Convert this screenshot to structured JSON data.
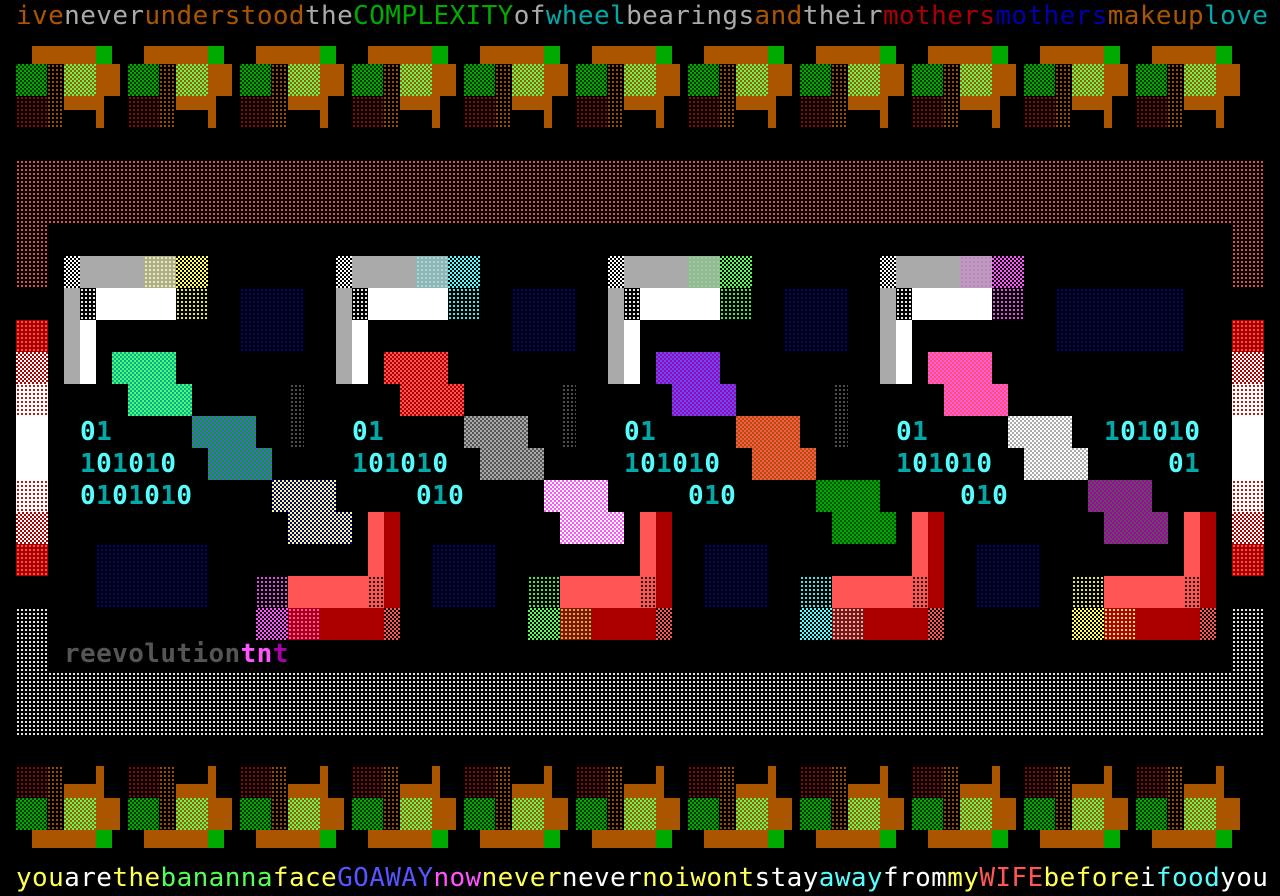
{
  "top_line": [
    {
      "text": "ive",
      "color": "#aa5500"
    },
    {
      "text": "never",
      "color": "#aaaaaa"
    },
    {
      "text": "understood",
      "color": "#aa5500"
    },
    {
      "text": "the",
      "color": "#aaaaaa"
    },
    {
      "text": "COMPLEXITY",
      "color": "#00aa00"
    },
    {
      "text": "of",
      "color": "#aaaaaa"
    },
    {
      "text": "wheel",
      "color": "#00aaaa"
    },
    {
      "text": "bearings",
      "color": "#aaaaaa"
    },
    {
      "text": "and",
      "color": "#aa5500"
    },
    {
      "text": "their",
      "color": "#aaaaaa"
    },
    {
      "text": "mothers",
      "color": "#aa0000"
    },
    {
      "text": "mothers",
      "color": "#0000aa"
    },
    {
      "text": "makeup",
      "color": "#aa5500"
    },
    {
      "text": "love",
      "color": "#00aaaa"
    }
  ],
  "bottom_line": [
    {
      "text": "you",
      "color": "#ffff55"
    },
    {
      "text": "are",
      "color": "#ffffff"
    },
    {
      "text": "the",
      "color": "#ffff55"
    },
    {
      "text": "bananna",
      "color": "#55ff55"
    },
    {
      "text": "face",
      "color": "#ffff55"
    },
    {
      "text": "GOAWAY",
      "color": "#5555ff"
    },
    {
      "text": "now",
      "color": "#ff55ff"
    },
    {
      "text": "never",
      "color": "#ffff55"
    },
    {
      "text": "never",
      "color": "#ffffff"
    },
    {
      "text": "noiwont",
      "color": "#ffff55"
    },
    {
      "text": "stay",
      "color": "#ffffff"
    },
    {
      "text": "away",
      "color": "#55ffff"
    },
    {
      "text": "from",
      "color": "#ffffff"
    },
    {
      "text": "my",
      "color": "#ffff55"
    },
    {
      "text": "WIFE",
      "color": "#ff5555"
    },
    {
      "text": "before",
      "color": "#ffff55"
    },
    {
      "text": "i",
      "color": "#ffffff"
    },
    {
      "text": "food",
      "color": "#55ffff"
    },
    {
      "text": "you",
      "color": "#ffffff"
    }
  ],
  "panels": [
    {
      "binary": [
        "01",
        "101010",
        "0101010"
      ],
      "accent_top": "#ffff55",
      "accent_bottom": "#ff55ff"
    },
    {
      "binary": [
        "01",
        "101010",
        "010"
      ],
      "accent_top": "#55ffff",
      "accent_bottom": "#55ff55"
    },
    {
      "binary": [
        "01",
        "101010",
        "010"
      ],
      "accent_top": "#55ff55",
      "accent_bottom": "#55ffff"
    },
    {
      "binary": [
        "01",
        "101010",
        "010"
      ],
      "accent_top": "#ff55ff",
      "accent_bottom": "#ffff55"
    }
  ],
  "right_binary": [
    "101010",
    "01"
  ],
  "signature": [
    {
      "text": "reevolution",
      "color": "#555555"
    },
    {
      "text": "tn",
      "color": "#ff55ff"
    },
    {
      "text": "t",
      "color": "#aa00aa"
    }
  ],
  "palette": {
    "orange": "#aa5500",
    "green": "#00aa00",
    "lime": "#55ff55",
    "dark_green": "#005500",
    "dark_red": "#aa0000",
    "light_red": "#ff5555",
    "white": "#ffffff",
    "gray": "#aaaaaa",
    "dark_gray": "#555555",
    "blue": "#0000aa",
    "digit_zero": "#55ffff",
    "digit_one": "#00aaaa"
  }
}
